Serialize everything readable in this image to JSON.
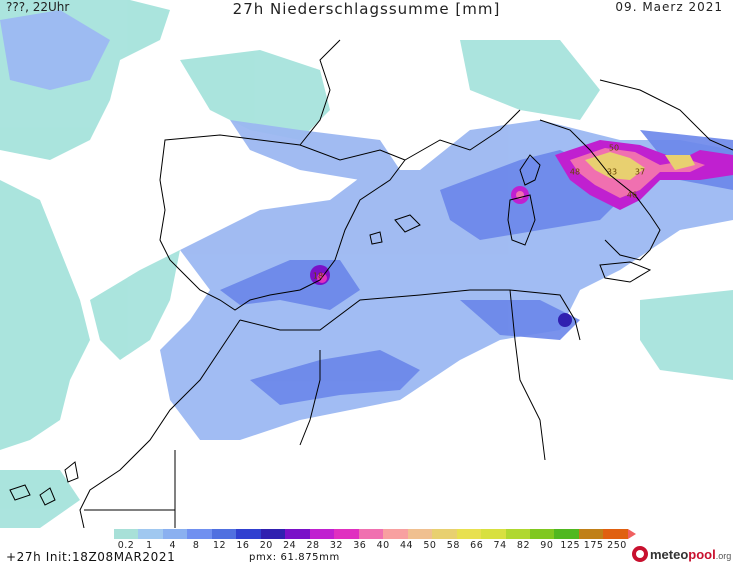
{
  "header": {
    "left": "???, 22Uhr",
    "title": "27h  Niederschlagssumme [mm]",
    "date": "09. Maerz 2021"
  },
  "footer": {
    "run": "+27h  Init:18Z08MAR2021",
    "pmx": "pmx: 61.875mm"
  },
  "logo": {
    "brand_a": "meteo",
    "brand_b": "pool",
    "suffix": ".org"
  },
  "map": {
    "kind": "precipitation accumulation",
    "background": "#ffffff",
    "coastline_color": "#000000",
    "max_labels": [
      "50",
      "48",
      "33",
      "37",
      "46",
      "18"
    ]
  },
  "colorbar": {
    "ticks": [
      "0.2",
      "1",
      "4",
      "8",
      "12",
      "16",
      "20",
      "24",
      "28",
      "32",
      "36",
      "40",
      "44",
      "50",
      "58",
      "66",
      "74",
      "82",
      "90",
      "125",
      "175",
      "250"
    ],
    "colors": [
      "#a8e0d8",
      "#a0c8f0",
      "#8ab0f0",
      "#7090f0",
      "#5070e0",
      "#3040d0",
      "#3020b0",
      "#7a10c8",
      "#c020d0",
      "#e030c0",
      "#f070b0",
      "#f8a0a0",
      "#f0c090",
      "#e8d070",
      "#e8e050",
      "#d8e040",
      "#b0d830",
      "#80c820",
      "#50b820",
      "#c08018",
      "#e06010",
      "#f06060"
    ]
  }
}
